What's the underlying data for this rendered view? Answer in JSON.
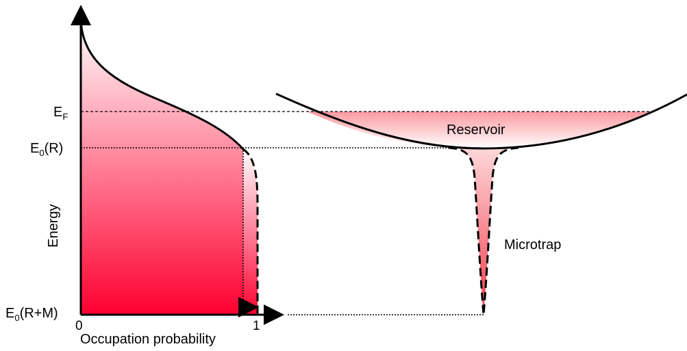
{
  "labels": {
    "fermi_energy": "E",
    "fermi_energy_sub": "F",
    "reservoir_energy": "E",
    "reservoir_energy_sub": "0",
    "reservoir_energy_arg": "(R)",
    "combined_energy": "E",
    "combined_energy_sub": "0",
    "combined_energy_arg": "(R+M)",
    "y_axis_label": "Energy",
    "x_axis_label": "Occupation probability",
    "x_tick_0": "0",
    "x_tick_1": "1",
    "reservoir_label": "Reservoir",
    "microtrap_label": "Microtrap"
  },
  "colors": {
    "gradient_top": "#ffffff",
    "gradient_bottom": "#ff0030",
    "reservoir_fill_top": "#fa9aa0",
    "microtrap_fill_top": "#fdd8da",
    "microtrap_fill_bottom": "#f23a4a",
    "line": "#000000"
  }
}
